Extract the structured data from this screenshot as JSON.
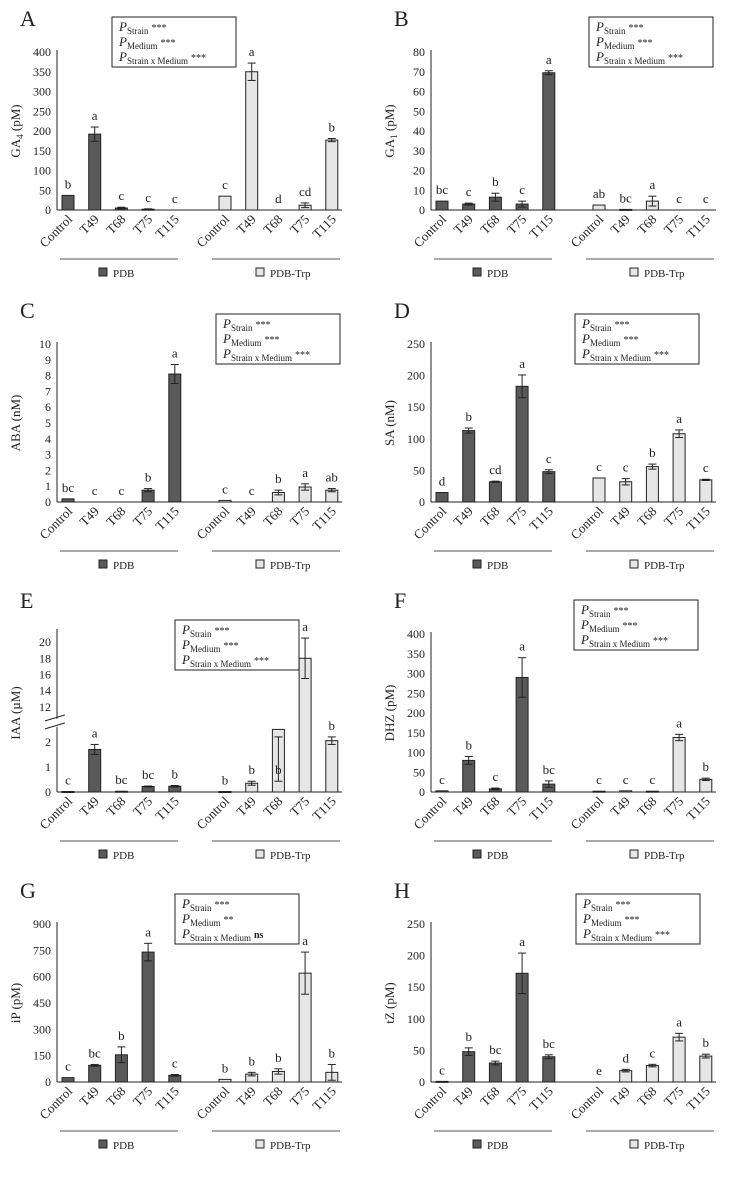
{
  "chart_data": [
    {
      "label": "A",
      "type": "bar",
      "ylabel": "GA4 (pM)",
      "ylabel_main": "GA",
      "ylabel_sub": "4",
      "ylabel_unit": " (pM)",
      "ylim": [
        0,
        400
      ],
      "yticks": [
        0,
        50,
        100,
        150,
        200,
        250,
        300,
        350,
        400
      ],
      "categories": [
        "Control",
        "T49",
        "T68",
        "T75",
        "T115"
      ],
      "series": [
        {
          "name": "PDB",
          "values": [
            37,
            192,
            5,
            2,
            0
          ],
          "errors": [
            0,
            18,
            2,
            1,
            0
          ],
          "letters": [
            "b",
            "a",
            "c",
            "c",
            "c"
          ]
        },
        {
          "name": "PDB-Trp",
          "values": [
            35,
            350,
            0,
            12,
            177
          ],
          "errors": [
            0,
            22,
            0,
            6,
            4
          ],
          "letters": [
            "c",
            "a",
            "d",
            "cd",
            "b"
          ]
        }
      ],
      "stats": [
        {
          "sub": "Strain",
          "sig": "***"
        },
        {
          "sub": "Medium",
          "sig": "***"
        },
        {
          "sub": "Strain x Medium",
          "sig": "***"
        }
      ]
    },
    {
      "label": "B",
      "type": "bar",
      "ylabel": "GA1 (pM)",
      "ylabel_main": "GA",
      "ylabel_sub": "1",
      "ylabel_unit": " (pM)",
      "ylim": [
        0,
        80
      ],
      "yticks": [
        0,
        10,
        20,
        30,
        40,
        50,
        60,
        70,
        80
      ],
      "categories": [
        "Control",
        "T49",
        "T68",
        "T75",
        "T115"
      ],
      "series": [
        {
          "name": "PDB",
          "values": [
            4.5,
            3,
            6.5,
            3,
            69.5
          ],
          "errors": [
            0,
            0.5,
            2,
            1.5,
            1
          ],
          "letters": [
            "bc",
            "c",
            "b",
            "c",
            "a"
          ]
        },
        {
          "name": "PDB-Trp",
          "values": [
            2.5,
            0.3,
            4.5,
            0,
            0
          ],
          "errors": [
            0,
            0,
            2.5,
            0,
            0
          ],
          "letters": [
            "ab",
            "bc",
            "a",
            "c",
            "c"
          ]
        }
      ],
      "stats": [
        {
          "sub": "Strain",
          "sig": "***"
        },
        {
          "sub": "Medium",
          "sig": "***"
        },
        {
          "sub": "Strain x Medium",
          "sig": "***"
        }
      ]
    },
    {
      "label": "C",
      "type": "bar",
      "ylabel": "ABA (nM)",
      "ylabel_main": "ABA",
      "ylabel_sub": "",
      "ylabel_unit": " (nM)",
      "ylim": [
        0,
        10
      ],
      "yticks": [
        0,
        1,
        2,
        3,
        4,
        5,
        6,
        7,
        8,
        9,
        10
      ],
      "categories": [
        "Control",
        "T49",
        "T68",
        "T75",
        "T115"
      ],
      "series": [
        {
          "name": "PDB",
          "values": [
            0.2,
            0,
            0,
            0.75,
            8.1
          ],
          "errors": [
            0,
            0,
            0,
            0.1,
            0.6
          ],
          "letters": [
            "bc",
            "c",
            "c",
            "b",
            "a"
          ]
        },
        {
          "name": "PDB-Trp",
          "values": [
            0.1,
            0,
            0.6,
            0.95,
            0.75
          ],
          "errors": [
            0,
            0,
            0.15,
            0.2,
            0.1
          ],
          "letters": [
            "c",
            "c",
            "b",
            "a",
            "ab"
          ]
        }
      ],
      "stats": [
        {
          "sub": "Strain",
          "sig": "***"
        },
        {
          "sub": "Medium",
          "sig": "***"
        },
        {
          "sub": "Strain x Medium",
          "sig": "***"
        }
      ]
    },
    {
      "label": "D",
      "type": "bar",
      "ylabel": "SA (nM)",
      "ylabel_main": "SA",
      "ylabel_sub": "",
      "ylabel_unit": " (nM)",
      "ylim": [
        0,
        250
      ],
      "yticks": [
        0,
        50,
        100,
        150,
        200,
        250
      ],
      "categories": [
        "Control",
        "T49",
        "T68",
        "T75",
        "T115"
      ],
      "series": [
        {
          "name": "PDB",
          "values": [
            15,
            113,
            32,
            183,
            48
          ],
          "errors": [
            0,
            4,
            1,
            18,
            3
          ],
          "letters": [
            "d",
            "b",
            "cd",
            "a",
            "c"
          ]
        },
        {
          "name": "PDB-Trp",
          "values": [
            38,
            32,
            56,
            108,
            35
          ],
          "errors": [
            0,
            5,
            4,
            6,
            1
          ],
          "letters": [
            "c",
            "c",
            "b",
            "a",
            "c"
          ]
        }
      ],
      "stats": [
        {
          "sub": "Strain",
          "sig": "***"
        },
        {
          "sub": "Medium",
          "sig": "***"
        },
        {
          "sub": "Strain x Medium",
          "sig": "***"
        }
      ]
    },
    {
      "label": "E",
      "type": "bar",
      "ylabel": "IAA (µM)",
      "ylabel_main": "IAA",
      "ylabel_sub": "",
      "ylabel_unit": " (µM)",
      "ylim": [
        0,
        21
      ],
      "axis_break": [
        2.6,
        11
      ],
      "yticks": [
        0,
        1,
        2,
        12,
        14,
        16,
        18,
        20
      ],
      "categories": [
        "Control",
        "T49",
        "T68",
        "T75",
        "T115"
      ],
      "series": [
        {
          "name": "PDB",
          "values": [
            0.02,
            1.7,
            0.03,
            0.22,
            0.23
          ],
          "errors": [
            0,
            0.2,
            0,
            0.02,
            0.03
          ],
          "letters": [
            "c",
            "a",
            "bc",
            "bc",
            "b"
          ]
        },
        {
          "name": "PDB-Trp",
          "values": [
            0.02,
            0.35,
            2.5,
            18,
            2.05
          ],
          "errors": [
            0,
            0.08,
            0.3,
            2.5,
            0.15
          ],
          "letters": [
            "b",
            "b",
            "b",
            "a",
            "b"
          ]
        }
      ],
      "stats": [
        {
          "sub": "Strain",
          "sig": "***"
        },
        {
          "sub": "Medium",
          "sig": "***"
        },
        {
          "sub": "Strain x Medium",
          "sig": "***"
        }
      ]
    },
    {
      "label": "F",
      "type": "bar",
      "ylabel": "DHZ (pM)",
      "ylabel_main": "DHZ",
      "ylabel_sub": "",
      "ylabel_unit": " (pM)",
      "ylim": [
        0,
        400
      ],
      "yticks": [
        0,
        50,
        100,
        150,
        200,
        250,
        300,
        350,
        400
      ],
      "categories": [
        "Control",
        "T49",
        "T68",
        "T75",
        "T115"
      ],
      "series": [
        {
          "name": "PDB",
          "values": [
            3,
            80,
            8,
            290,
            20
          ],
          "errors": [
            0,
            10,
            2,
            50,
            8
          ],
          "letters": [
            "c",
            "b",
            "c",
            "a",
            "bc"
          ]
        },
        {
          "name": "PDB-Trp",
          "values": [
            2,
            3,
            2,
            138,
            32
          ],
          "errors": [
            0,
            0,
            0,
            8,
            3
          ],
          "letters": [
            "c",
            "c",
            "c",
            "a",
            "b"
          ]
        }
      ],
      "stats": [
        {
          "sub": "Strain",
          "sig": "***"
        },
        {
          "sub": "Medium",
          "sig": "***"
        },
        {
          "sub": "Strain x Medium",
          "sig": "***"
        }
      ]
    },
    {
      "label": "G",
      "type": "bar",
      "ylabel": "iP (pM)",
      "ylabel_main": "iP",
      "ylabel_sub": "",
      "ylabel_unit": " (pM)",
      "ylim": [
        0,
        900
      ],
      "yticks": [
        0,
        150,
        300,
        450,
        600,
        750,
        900
      ],
      "categories": [
        "Control",
        "T49",
        "T68",
        "T75",
        "T115"
      ],
      "series": [
        {
          "name": "PDB",
          "values": [
            25,
            95,
            155,
            740,
            38
          ],
          "errors": [
            0,
            5,
            45,
            50,
            5
          ],
          "letters": [
            "c",
            "bc",
            "b",
            "a",
            "c"
          ]
        },
        {
          "name": "PDB-Trp",
          "values": [
            15,
            45,
            60,
            620,
            55
          ],
          "errors": [
            0,
            10,
            15,
            120,
            45
          ],
          "letters": [
            "b",
            "b",
            "b",
            "a",
            "b"
          ]
        }
      ],
      "stats": [
        {
          "sub": "Strain",
          "sig": "***"
        },
        {
          "sub": "Medium",
          "sig": "**"
        },
        {
          "sub": "Strain x Medium",
          "sig": "ns"
        }
      ]
    },
    {
      "label": "H",
      "type": "bar",
      "ylabel": "tZ (pM)",
      "ylabel_main": "tZ",
      "ylabel_sub": "",
      "ylabel_unit": " (pM)",
      "ylim": [
        0,
        250
      ],
      "yticks": [
        0,
        50,
        100,
        150,
        200,
        250
      ],
      "categories": [
        "Control",
        "T49",
        "T68",
        "T75",
        "T115"
      ],
      "series": [
        {
          "name": "PDB",
          "values": [
            1,
            48,
            30,
            172,
            40
          ],
          "errors": [
            0,
            6,
            3,
            32,
            3
          ],
          "letters": [
            "c",
            "b",
            "bc",
            "a",
            "bc"
          ]
        },
        {
          "name": "PDB-Trp",
          "values": [
            0,
            18,
            26,
            71,
            41
          ],
          "errors": [
            0,
            2,
            2,
            6,
            3
          ],
          "letters": [
            "e",
            "d",
            "c",
            "a",
            "b"
          ]
        }
      ],
      "stats": [
        {
          "sub": "Strain",
          "sig": "***"
        },
        {
          "sub": "Medium",
          "sig": "***"
        },
        {
          "sub": "Strain x Medium",
          "sig": "***"
        }
      ]
    }
  ],
  "stat_symbol": "P",
  "colors": {
    "PDB": "#5a5a5a",
    "PDB-Trp": "#e6e6e6"
  }
}
